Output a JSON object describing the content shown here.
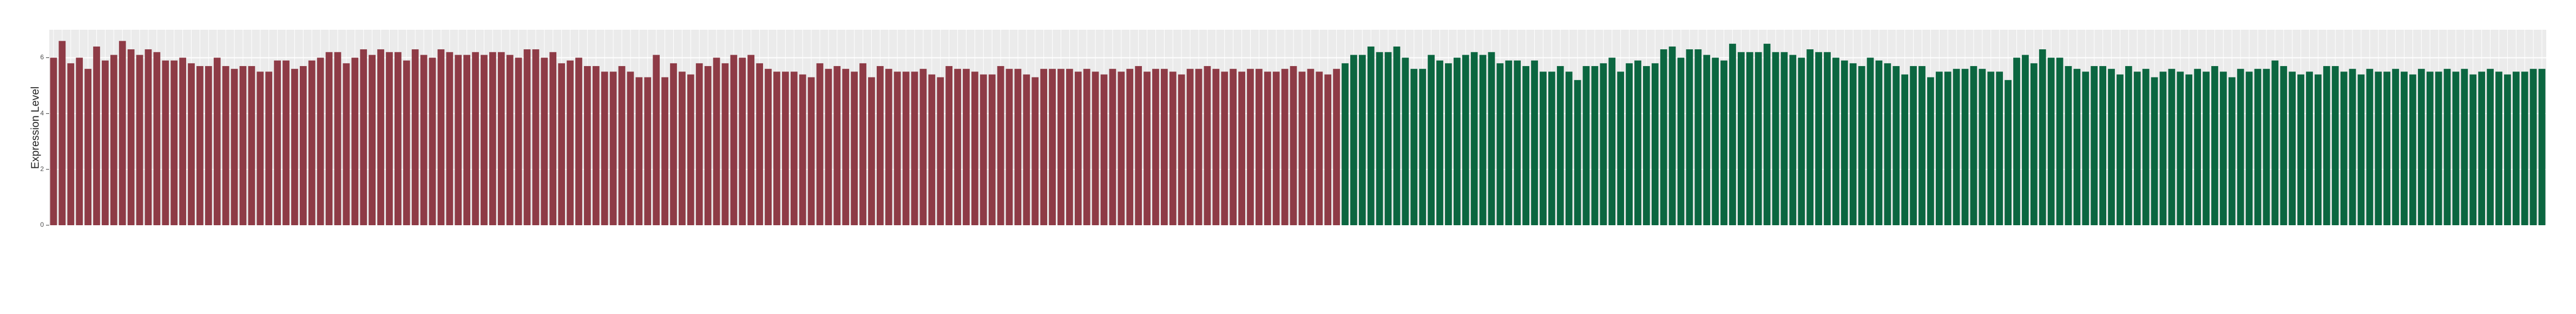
{
  "chart_data": {
    "type": "bar",
    "y_label": "Expression Level",
    "ylim": [
      0,
      7
    ],
    "yticks": [
      0,
      2,
      4,
      6
    ],
    "grid": true,
    "series": [
      {
        "color": "#8e3b46",
        "values": [
          6.0,
          6.6,
          5.8,
          6.0,
          5.6,
          6.4,
          5.9,
          6.1,
          6.6,
          6.3,
          6.1,
          6.3,
          6.2,
          5.9,
          5.9,
          6.0,
          5.8,
          5.7,
          5.7,
          6.0,
          5.7,
          5.6,
          5.7,
          5.7,
          5.5,
          5.5,
          5.9,
          5.9,
          5.6,
          5.7,
          5.9,
          6.0,
          6.2,
          6.2,
          5.8,
          6.0,
          6.3,
          6.1,
          6.3,
          6.2,
          6.2,
          5.9,
          6.3,
          6.1,
          6.0,
          6.3,
          6.2,
          6.1,
          6.1,
          6.2,
          6.1,
          6.2,
          6.2,
          6.1,
          6.0,
          6.3,
          6.3,
          6.0,
          6.2,
          5.8,
          5.9,
          6.0,
          5.7,
          5.7,
          5.5,
          5.5,
          5.7,
          5.5,
          5.3,
          5.3,
          6.1,
          5.3,
          5.8,
          5.5,
          5.4,
          5.8,
          5.7,
          6.0,
          5.8,
          6.1,
          6.0,
          6.1,
          5.8,
          5.6,
          5.5,
          5.5,
          5.5,
          5.4,
          5.3,
          5.8,
          5.6,
          5.7,
          5.6,
          5.5,
          5.8,
          5.3,
          5.7,
          5.6,
          5.5,
          5.5,
          5.5,
          5.6,
          5.4,
          5.3,
          5.7,
          5.6,
          5.6,
          5.5,
          5.4,
          5.4,
          5.7,
          5.6,
          5.6,
          5.4,
          5.3,
          5.6,
          5.6,
          5.6,
          5.6,
          5.5,
          5.6,
          5.5,
          5.4,
          5.6,
          5.5,
          5.6,
          5.7,
          5.5,
          5.6,
          5.6,
          5.5,
          5.4,
          5.6,
          5.6,
          5.7,
          5.6,
          5.5,
          5.6,
          5.5,
          5.6,
          5.6,
          5.5,
          5.5,
          5.6,
          5.7,
          5.5,
          5.6,
          5.5,
          5.4,
          5.6
        ]
      },
      {
        "color": "#0b6640",
        "values": [
          5.8,
          6.1,
          6.1,
          6.4,
          6.2,
          6.2,
          6.4,
          6.0,
          5.6,
          5.6,
          6.1,
          5.9,
          5.8,
          6.0,
          6.1,
          6.2,
          6.1,
          6.2,
          5.8,
          5.9,
          5.9,
          5.7,
          5.9,
          5.5,
          5.5,
          5.7,
          5.5,
          5.2,
          5.7,
          5.7,
          5.8,
          6.0,
          5.5,
          5.8,
          5.9,
          5.7,
          5.8,
          6.3,
          6.4,
          6.0,
          6.3,
          6.3,
          6.1,
          6.0,
          5.9,
          6.5,
          6.2,
          6.2,
          6.2,
          6.5,
          6.2,
          6.2,
          6.1,
          6.0,
          6.3,
          6.2,
          6.2,
          6.0,
          5.9,
          5.8,
          5.7,
          6.0,
          5.9,
          5.8,
          5.7,
          5.4,
          5.7,
          5.7,
          5.3,
          5.5,
          5.5,
          5.6,
          5.6,
          5.7,
          5.6,
          5.5,
          5.5,
          5.2,
          6.0,
          6.1,
          5.8,
          6.3,
          6.0,
          6.0,
          5.7,
          5.6,
          5.5,
          5.7,
          5.7,
          5.6,
          5.4,
          5.7,
          5.5,
          5.6,
          5.3,
          5.5,
          5.6,
          5.5,
          5.4,
          5.6,
          5.5,
          5.7,
          5.5,
          5.3,
          5.6,
          5.5,
          5.6,
          5.6,
          5.9,
          5.7,
          5.5,
          5.4,
          5.5,
          5.4,
          5.7,
          5.7,
          5.5,
          5.6,
          5.4,
          5.6,
          5.5,
          5.5,
          5.6,
          5.5,
          5.4,
          5.6,
          5.5,
          5.5,
          5.6,
          5.5,
          5.6,
          5.4,
          5.5,
          5.6,
          5.5,
          5.4,
          5.5,
          5.5,
          5.6,
          5.6
        ]
      }
    ]
  }
}
